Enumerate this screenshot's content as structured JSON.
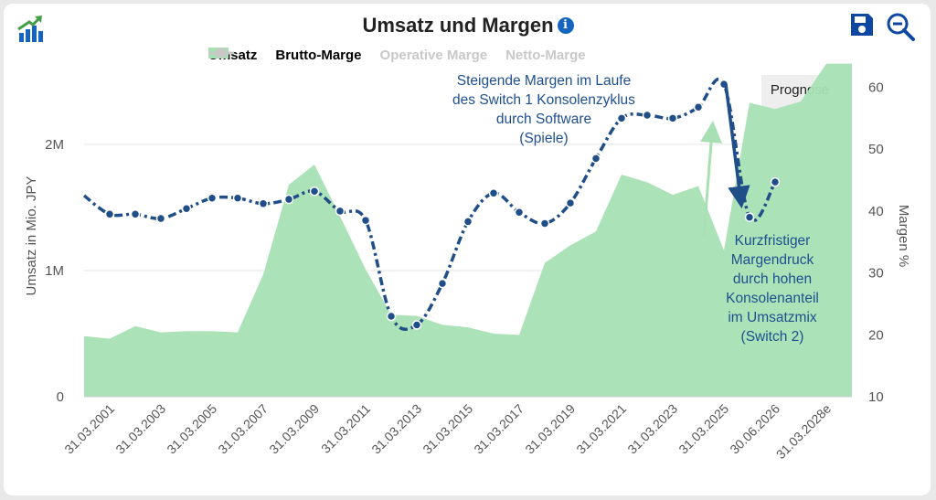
{
  "title": "Umsatz und Margen",
  "legend": [
    {
      "label": "Umsatz",
      "color": "#a8e0b4",
      "marker": "area",
      "active": true
    },
    {
      "label": "Brutto-Marge",
      "color": "#1f4e89",
      "marker": "dash-dot",
      "active": true
    },
    {
      "label": "Operative Marge",
      "color": "#c8c8c8",
      "marker": "diamond",
      "active": false
    },
    {
      "label": "Netto-Marge",
      "color": "#c8c8c8",
      "marker": "square",
      "active": false
    }
  ],
  "toolbar": {
    "logo_icon": "chart-logo-icon",
    "save_icon": "save-icon",
    "zoom_icon": "zoom-out-icon"
  },
  "annotations": {
    "top": [
      "Steigende Margen im Laufe",
      "des Switch 1 Konsolenzyklus",
      "durch Software",
      "(Spiele)"
    ],
    "bottom": [
      "Kurzfristiger",
      "Margendruck",
      "durch hohen",
      "Konsolenanteil",
      "im Umsatzmix",
      "(Switch 2)"
    ],
    "forecast_label": "Prognose"
  },
  "chart_data": {
    "type": "area",
    "title": "Umsatz und Margen",
    "ylabel": "Umsatz in Mio. JPY",
    "y2label": "Margen %",
    "ylim": [
      0,
      2550000
    ],
    "y2lim": [
      10,
      62
    ],
    "y_ticks": [
      "0",
      "1M",
      "2M"
    ],
    "y2_ticks": [
      "10",
      "20",
      "30",
      "40",
      "50",
      "60"
    ],
    "x_tick_labels": [
      "31.03.2001",
      "31.03.2003",
      "31.03.2005",
      "31.03.2007",
      "31.03.2009",
      "31.03.2011",
      "31.03.2013",
      "31.03.2015",
      "31.03.2017",
      "31.03.2019",
      "31.03.2021",
      "31.03.2023",
      "31.03.2025",
      "30.06.2026",
      "31.03.2028e"
    ],
    "forecast_region": "Prognose",
    "colors": {
      "area": "#a8e0b4",
      "line": "#1f4e89",
      "forecast": "#eeeeee",
      "arrow_up": "#a8e0b4",
      "arrow_down": "#1f4e89"
    },
    "series": [
      {
        "name": "Umsatz",
        "axis": "left",
        "points": [
          [
            "31.03.2000",
            480000
          ],
          [
            "31.03.2001",
            460000
          ],
          [
            "31.03.2002",
            560000
          ],
          [
            "31.03.2003",
            510000
          ],
          [
            "31.03.2004",
            520000
          ],
          [
            "31.03.2005",
            520000
          ],
          [
            "31.03.2006",
            510000
          ],
          [
            "31.03.2007",
            970000
          ],
          [
            "31.03.2008",
            1680000
          ],
          [
            "31.03.2009",
            1840000
          ],
          [
            "31.03.2010",
            1430000
          ],
          [
            "31.03.2011",
            1010000
          ],
          [
            "31.03.2012",
            650000
          ],
          [
            "31.03.2013",
            640000
          ],
          [
            "31.03.2014",
            570000
          ],
          [
            "31.03.2015",
            550000
          ],
          [
            "31.03.2016",
            500000
          ],
          [
            "31.03.2017",
            490000
          ],
          [
            "31.03.2018",
            1060000
          ],
          [
            "31.03.2019",
            1200000
          ],
          [
            "31.03.2020",
            1310000
          ],
          [
            "31.03.2021",
            1760000
          ],
          [
            "31.03.2022",
            1700000
          ],
          [
            "31.03.2023",
            1600000
          ],
          [
            "31.03.2024",
            1670000
          ],
          [
            "31.03.2025",
            1160000
          ],
          [
            "30.06.2025",
            2330000
          ],
          [
            "30.06.2026",
            2280000
          ],
          [
            "31.03.2027e",
            2340000
          ],
          [
            "31.03.2028e",
            2640000
          ],
          [
            "31.03.2029e",
            2640000
          ]
        ]
      },
      {
        "name": "Brutto-Marge",
        "axis": "right",
        "points": [
          [
            "31.03.2000",
            42.5
          ],
          [
            "31.03.2001",
            39.5
          ],
          [
            "31.03.2002",
            39.5
          ],
          [
            "31.03.2003",
            38.8
          ],
          [
            "31.03.2004",
            40.4
          ],
          [
            "31.03.2005",
            42.1
          ],
          [
            "31.03.2006",
            42.1
          ],
          [
            "31.03.2007",
            41.2
          ],
          [
            "31.03.2008",
            41.9
          ],
          [
            "31.03.2009",
            43.2
          ],
          [
            "31.03.2010",
            40.0
          ],
          [
            "31.03.2011",
            38.5
          ],
          [
            "31.03.2012",
            23.0
          ],
          [
            "31.03.2013",
            21.6
          ],
          [
            "31.03.2014",
            28.3
          ],
          [
            "31.03.2015",
            38.3
          ],
          [
            "31.03.2016",
            42.9
          ],
          [
            "31.03.2017",
            39.8
          ],
          [
            "31.03.2018",
            38.0
          ],
          [
            "31.03.2019",
            41.3
          ],
          [
            "31.03.2020",
            48.5
          ],
          [
            "31.03.2021",
            55.0
          ],
          [
            "31.03.2022",
            55.5
          ],
          [
            "31.03.2023",
            55.0
          ],
          [
            "31.03.2024",
            56.8
          ],
          [
            "31.03.2025",
            60.5
          ],
          [
            "30.06.2025",
            39.0
          ],
          [
            "30.06.2026",
            44.7
          ]
        ]
      }
    ],
    "grid": true,
    "legend_position": "top"
  }
}
